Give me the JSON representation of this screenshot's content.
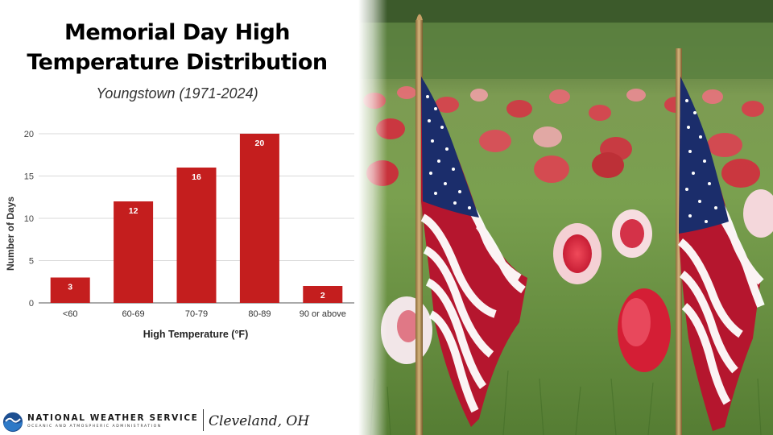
{
  "title_line1": "Memorial Day High",
  "title_line2": "Temperature Distribution",
  "subtitle": "Youngstown (1971-2024)",
  "chart_data": {
    "type": "bar",
    "categories": [
      "<60",
      "60-69",
      "70-79",
      "80-89",
      "90 or above"
    ],
    "values": [
      3,
      12,
      16,
      20,
      2
    ],
    "xlabel": "High Temperature (°F)",
    "ylabel": "Number of Days",
    "ylim": [
      0,
      20
    ],
    "yticks": [
      0,
      5,
      10,
      15,
      20
    ],
    "bar_color": "#c41e1e",
    "grid": true,
    "data_labels": true
  },
  "footer": {
    "agency": "NATIONAL WEATHER SERVICE",
    "agency_sub": "OCEANIC AND ATMOSPHERIC ADMINISTRATION",
    "office": "Cleveland, OH"
  },
  "photo": {
    "subject": "american-flags-and-red-white-flowers"
  }
}
